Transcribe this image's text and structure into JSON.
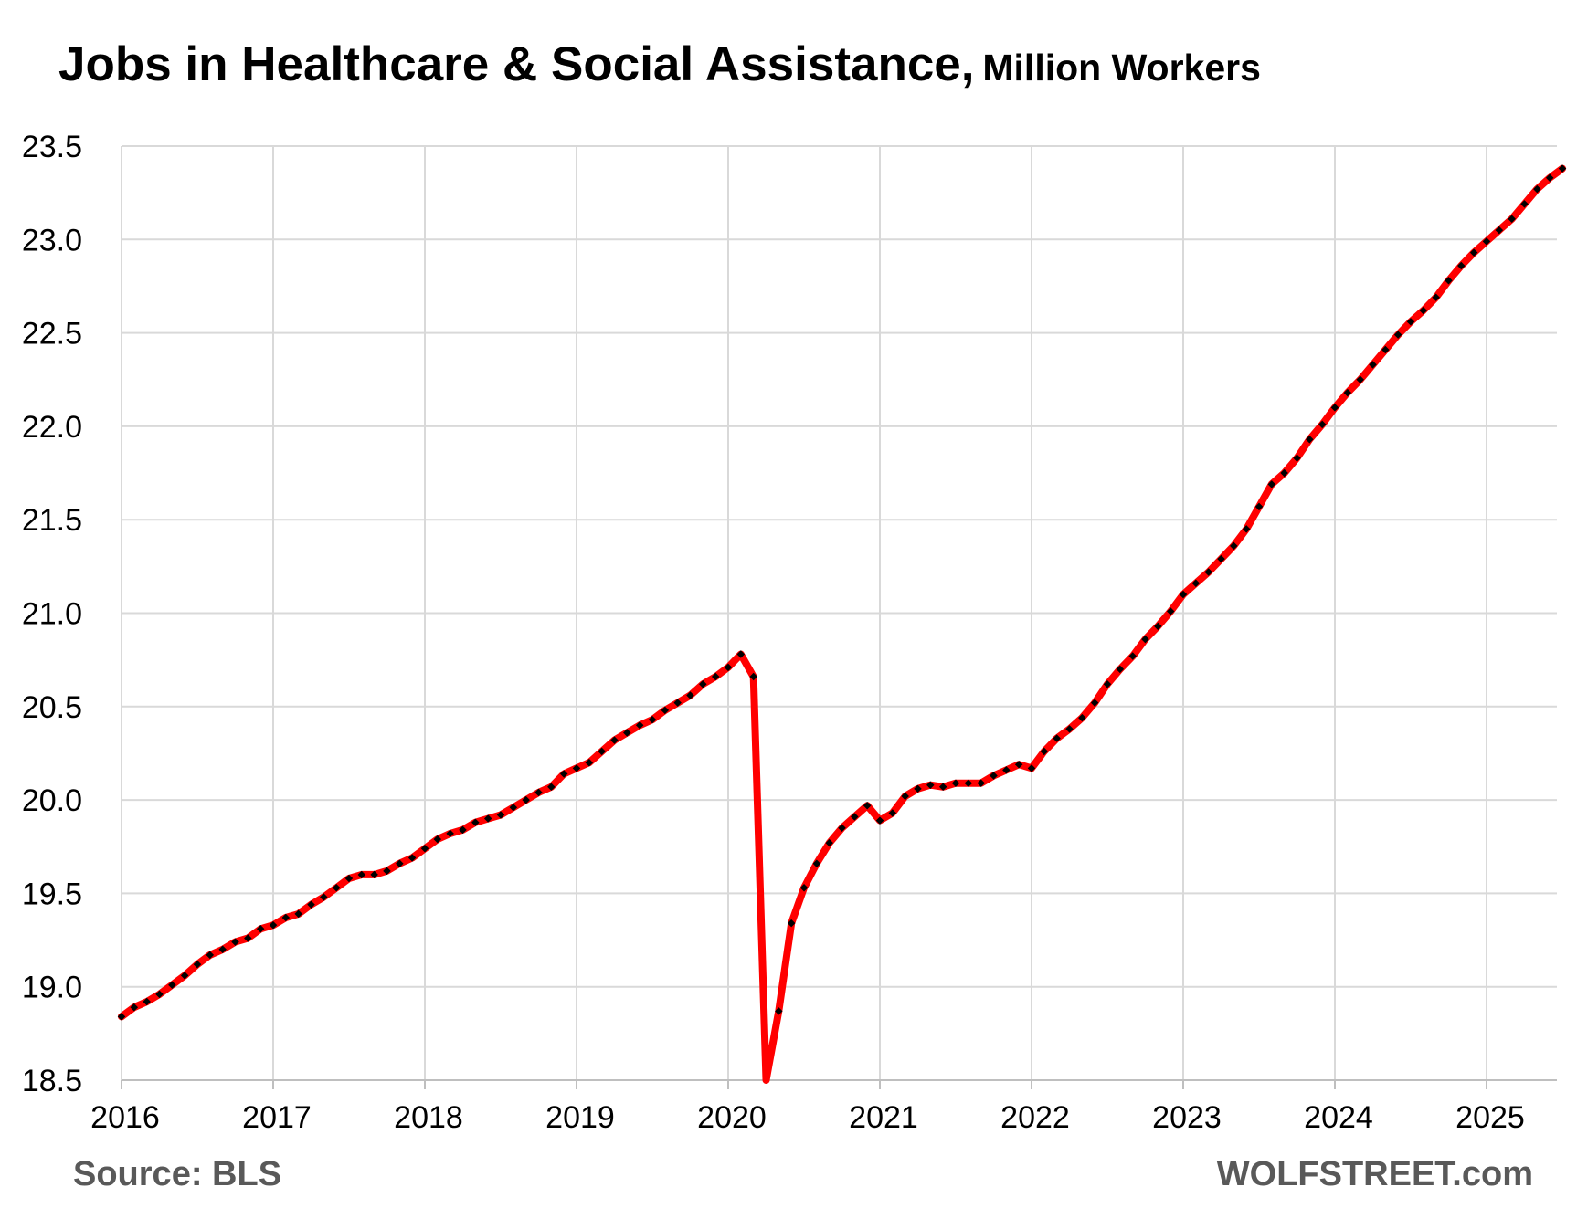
{
  "chart_data": {
    "type": "line",
    "title": "Jobs in Healthcare & Social Assistance,",
    "subtitle": "Million Workers",
    "source": "Source: BLS",
    "brand": "WOLFSTREET.com",
    "xlabel": "",
    "ylabel": "",
    "xlim": [
      2016.0,
      2025.5
    ],
    "ylim": [
      18.5,
      23.5
    ],
    "x_ticks": [
      2016,
      2017,
      2018,
      2019,
      2020,
      2021,
      2022,
      2023,
      2024,
      2025
    ],
    "y_ticks": [
      "18.5",
      "19.0",
      "19.5",
      "20.0",
      "20.5",
      "21.0",
      "21.5",
      "22.0",
      "22.5",
      "23.0",
      "23.5"
    ],
    "grid": true,
    "legend": "none",
    "line_color": "#ff0000",
    "marker_color": "#000000",
    "series": [
      {
        "x": [
          "2016-01",
          "2016-02",
          "2016-03",
          "2016-04",
          "2016-05",
          "2016-06",
          "2016-07",
          "2016-08",
          "2016-09",
          "2016-10",
          "2016-11",
          "2016-12",
          "2017-01",
          "2017-02",
          "2017-03",
          "2017-04",
          "2017-05",
          "2017-06",
          "2017-07",
          "2017-08",
          "2017-09",
          "2017-10",
          "2017-11",
          "2017-12",
          "2018-01",
          "2018-02",
          "2018-03",
          "2018-04",
          "2018-05",
          "2018-06",
          "2018-07",
          "2018-08",
          "2018-09",
          "2018-10",
          "2018-11",
          "2018-12",
          "2019-01",
          "2019-02",
          "2019-03",
          "2019-04",
          "2019-05",
          "2019-06",
          "2019-07",
          "2019-08",
          "2019-09",
          "2019-10",
          "2019-11",
          "2019-12",
          "2020-01",
          "2020-02",
          "2020-03",
          "2020-04",
          "2020-05",
          "2020-06",
          "2020-07",
          "2020-08",
          "2020-09",
          "2020-10",
          "2020-11",
          "2020-12",
          "2021-01",
          "2021-02",
          "2021-03",
          "2021-04",
          "2021-05",
          "2021-06",
          "2021-07",
          "2021-08",
          "2021-09",
          "2021-10",
          "2021-11",
          "2021-12",
          "2022-01",
          "2022-02",
          "2022-03",
          "2022-04",
          "2022-05",
          "2022-06",
          "2022-07",
          "2022-08",
          "2022-09",
          "2022-10",
          "2022-11",
          "2022-12",
          "2023-01",
          "2023-02",
          "2023-03",
          "2023-04",
          "2023-05",
          "2023-06",
          "2023-07",
          "2023-08",
          "2023-09",
          "2023-10",
          "2023-11",
          "2023-12",
          "2024-01",
          "2024-02",
          "2024-03",
          "2024-04",
          "2024-05",
          "2024-06",
          "2024-07",
          "2024-08",
          "2024-09",
          "2024-10",
          "2024-11",
          "2024-12",
          "2025-01",
          "2025-02",
          "2025-03",
          "2025-04",
          "2025-05",
          "2025-06",
          "2025-07"
        ],
        "values": [
          18.84,
          18.89,
          18.92,
          18.96,
          19.01,
          19.06,
          19.12,
          19.17,
          19.2,
          19.24,
          19.26,
          19.31,
          19.33,
          19.37,
          19.39,
          19.44,
          19.48,
          19.53,
          19.58,
          19.6,
          19.6,
          19.62,
          19.66,
          19.69,
          19.74,
          19.79,
          19.82,
          19.84,
          19.88,
          19.9,
          19.92,
          19.96,
          20.0,
          20.04,
          20.07,
          20.14,
          20.17,
          20.2,
          20.26,
          20.32,
          20.36,
          20.4,
          20.43,
          20.48,
          20.52,
          20.56,
          20.62,
          20.66,
          20.71,
          20.78,
          20.66,
          18.47,
          18.87,
          19.34,
          19.53,
          19.66,
          19.77,
          19.85,
          19.91,
          19.97,
          19.89,
          19.93,
          20.02,
          20.06,
          20.08,
          20.07,
          20.09,
          20.09,
          20.09,
          20.13,
          20.16,
          20.19,
          20.17,
          20.26,
          20.33,
          20.38,
          20.44,
          20.52,
          20.62,
          20.7,
          20.77,
          20.86,
          20.93,
          21.01,
          21.1,
          21.16,
          21.22,
          21.29,
          21.36,
          21.45,
          21.57,
          21.69,
          21.75,
          21.83,
          21.93,
          22.01,
          22.1,
          22.18,
          22.25,
          22.33,
          22.41,
          22.49,
          22.56,
          22.62,
          22.69,
          22.78,
          22.86,
          22.93,
          22.99,
          23.05,
          23.11,
          23.19,
          23.27,
          23.33,
          23.38
        ]
      }
    ]
  }
}
